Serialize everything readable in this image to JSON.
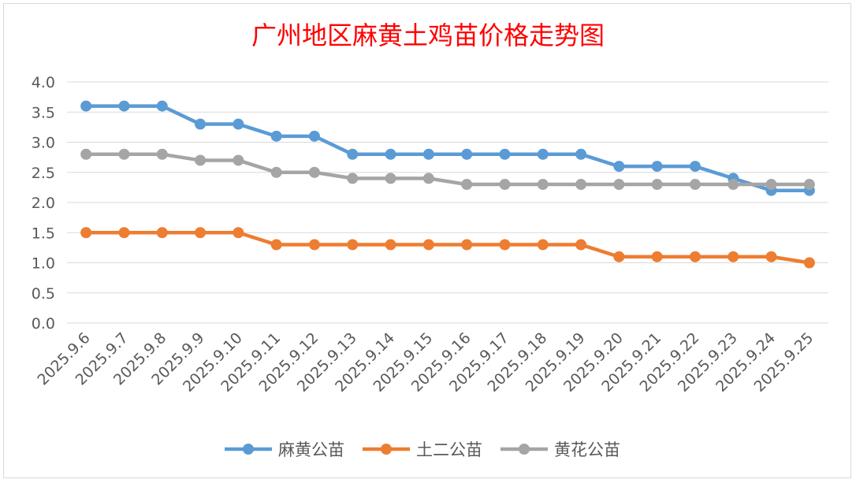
{
  "chart_data": {
    "type": "line",
    "title": "广州地区麻黄土鸡苗价格走势图",
    "title_color": "#ff0000",
    "categories": [
      "2025.9.6",
      "2025.9.7",
      "2025.9.8",
      "2025.9.9",
      "2025.9.10",
      "2025.9.11",
      "2025.9.12",
      "2025.9.13",
      "2025.9.14",
      "2025.9.15",
      "2025.9.16",
      "2025.9.17",
      "2025.9.18",
      "2025.9.19",
      "2025.9.20",
      "2025.9.21",
      "2025.9.22",
      "2025.9.23",
      "2025.9.24",
      "2025.9.25"
    ],
    "series": [
      {
        "name": "麻黄公苗",
        "color": "#5b9bd5",
        "values": [
          3.6,
          3.6,
          3.6,
          3.3,
          3.3,
          3.1,
          3.1,
          2.8,
          2.8,
          2.8,
          2.8,
          2.8,
          2.8,
          2.8,
          2.6,
          2.6,
          2.6,
          2.4,
          2.2,
          2.2
        ]
      },
      {
        "name": "土二公苗",
        "color": "#ed7d31",
        "values": [
          1.5,
          1.5,
          1.5,
          1.5,
          1.5,
          1.3,
          1.3,
          1.3,
          1.3,
          1.3,
          1.3,
          1.3,
          1.3,
          1.3,
          1.1,
          1.1,
          1.1,
          1.1,
          1.1,
          1.0
        ]
      },
      {
        "name": "黄花公苗",
        "color": "#a5a5a5",
        "values": [
          2.8,
          2.8,
          2.8,
          2.7,
          2.7,
          2.5,
          2.5,
          2.4,
          2.4,
          2.4,
          2.3,
          2.3,
          2.3,
          2.3,
          2.3,
          2.3,
          2.3,
          2.3,
          2.3,
          2.3
        ]
      }
    ],
    "ylim": [
      0,
      4
    ],
    "yticks": [
      "0.0",
      "0.5",
      "1.0",
      "1.5",
      "2.0",
      "2.5",
      "3.0",
      "3.5",
      "4.0"
    ],
    "grid": true,
    "legend_position": "bottom"
  }
}
